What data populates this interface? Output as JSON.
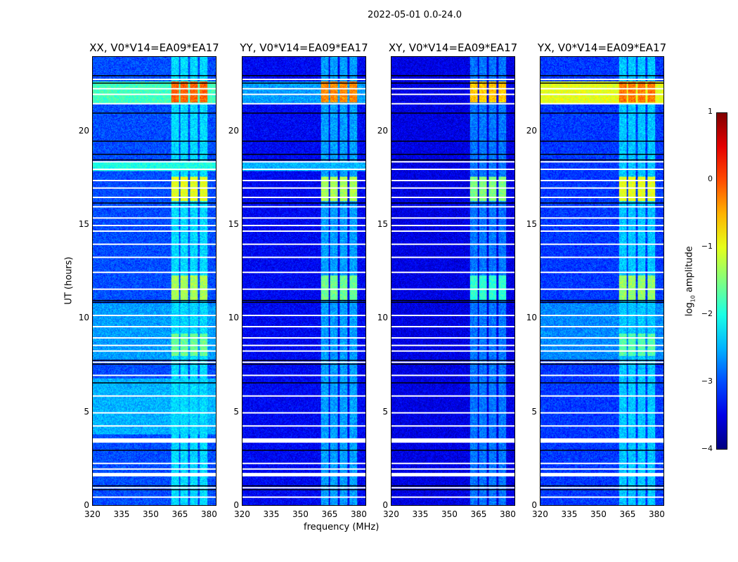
{
  "chart_data": {
    "type": "heatmap",
    "suptitle": "2022-05-01 0.0-24.0",
    "xlabel": "frequency (MHz)",
    "ylabel": "UT (hours)",
    "xlim": [
      320,
      384
    ],
    "ylim": [
      0,
      24
    ],
    "xticks": [
      320,
      335,
      350,
      365,
      380
    ],
    "yticks": [
      0,
      5,
      10,
      15,
      20
    ],
    "colorbar": {
      "label_prefix": "log",
      "label_sub": "10",
      "label_suffix": " amplitude",
      "range": [
        -4,
        1
      ],
      "ticks": [
        "1",
        "0",
        "−1",
        "−2",
        "−3",
        "−4"
      ],
      "tick_values": [
        1,
        0,
        -1,
        -2,
        -3,
        -4
      ],
      "colormap": "jet"
    },
    "rfi_channels_mhz": [
      [
        360.5,
        364.5
      ],
      [
        365.5,
        369.5
      ],
      [
        370.5,
        374.5
      ],
      [
        375.5,
        379.5
      ]
    ],
    "flagged_white_hours": [
      0.5,
      1.0,
      1.7,
      2.0,
      2.3,
      3.5,
      3.6,
      4.3,
      5.0,
      5.9,
      7.0,
      7.7,
      8.3,
      8.6,
      9.0,
      9.6,
      10.2,
      11.6,
      12.5,
      13.3,
      14.0,
      14.7,
      15.0,
      15.4,
      16.0,
      16.5,
      17.0,
      17.4,
      18.0,
      18.4,
      21.5,
      22.0,
      22.3,
      22.8
    ],
    "flagged_black_hours": [
      0.9,
      1.1,
      3.0,
      6.6,
      7.6,
      7.8,
      10.9,
      11.0,
      16.2,
      18.5,
      18.8,
      19.5,
      21.0,
      22.6,
      23.0
    ],
    "panels": [
      {
        "title": "XX, V0*V14=EA09*EA17",
        "background_log_amp": -3.0,
        "rfi_bands": [
          {
            "t": [
              21.6,
              22.7
            ],
            "level": -0.1
          },
          {
            "t": [
              16.3,
              17.6
            ],
            "level": -1.0
          },
          {
            "t": [
              11.0,
              12.3
            ],
            "level": -1.3
          },
          {
            "t": [
              8.0,
              9.2
            ],
            "level": -1.6
          },
          {
            "t": [
              0,
              24
            ],
            "level": -2.3
          }
        ],
        "broadband_bands": [
          {
            "t": [
              21.5,
              22.7
            ],
            "level": -1.8
          },
          {
            "t": [
              17.9,
              18.4
            ],
            "level": -2.0
          },
          {
            "t": [
              3.8,
              6.8
            ],
            "level": -2.5
          },
          {
            "t": [
              7.8,
              10.8
            ],
            "level": -2.6
          }
        ]
      },
      {
        "title": "YY, V0*V14=EA09*EA17",
        "background_log_amp": -3.4,
        "rfi_bands": [
          {
            "t": [
              21.6,
              22.7
            ],
            "level": -0.3
          },
          {
            "t": [
              16.3,
              17.6
            ],
            "level": -1.3
          },
          {
            "t": [
              11.0,
              12.3
            ],
            "level": -1.6
          },
          {
            "t": [
              0,
              24
            ],
            "level": -2.6
          }
        ],
        "broadband_bands": [
          {
            "t": [
              21.5,
              22.7
            ],
            "level": -2.6
          },
          {
            "t": [
              17.9,
              18.4
            ],
            "level": -2.5
          }
        ]
      },
      {
        "title": "XY, V0*V14=EA09*EA17",
        "background_log_amp": -3.5,
        "rfi_bands": [
          {
            "t": [
              21.6,
              22.7
            ],
            "level": -0.6
          },
          {
            "t": [
              16.3,
              17.6
            ],
            "level": -1.5
          },
          {
            "t": [
              11.0,
              12.3
            ],
            "level": -1.9
          },
          {
            "t": [
              0,
              24
            ],
            "level": -2.8
          }
        ],
        "broadband_bands": []
      },
      {
        "title": "YX, V0*V14=EA09*EA17",
        "background_log_amp": -3.1,
        "rfi_bands": [
          {
            "t": [
              21.6,
              22.7
            ],
            "level": -0.2
          },
          {
            "t": [
              16.3,
              17.6
            ],
            "level": -1.0
          },
          {
            "t": [
              11.0,
              12.3
            ],
            "level": -1.4
          },
          {
            "t": [
              8.0,
              9.2
            ],
            "level": -1.7
          },
          {
            "t": [
              0,
              24
            ],
            "level": -2.4
          }
        ],
        "broadband_bands": [
          {
            "t": [
              21.5,
              22.7
            ],
            "level": -1.0
          },
          {
            "t": [
              7.8,
              10.8
            ],
            "level": -2.7
          }
        ]
      }
    ]
  }
}
